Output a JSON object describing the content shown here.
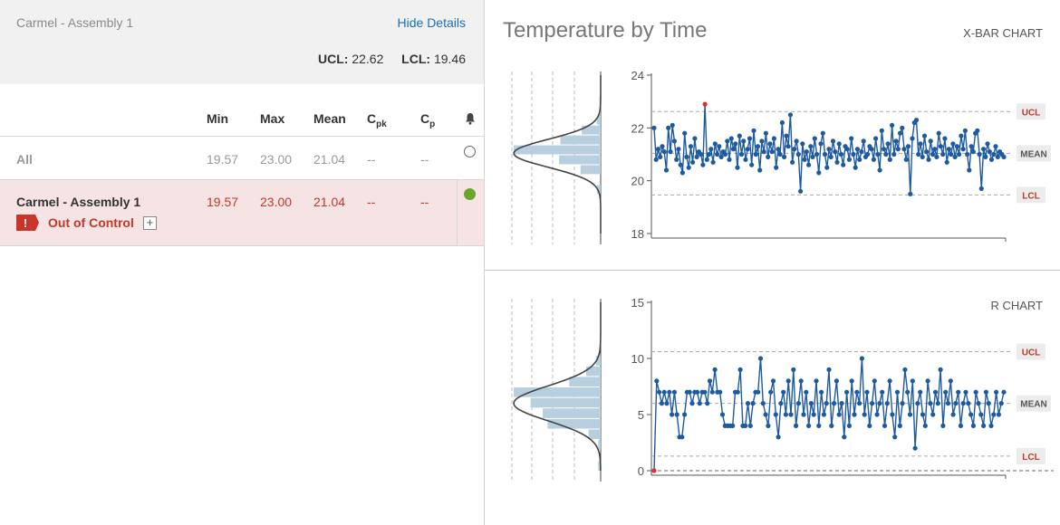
{
  "left": {
    "title": "Carmel - Assembly 1",
    "hide_details": "Hide Details",
    "ucl_label": "UCL:",
    "ucl_value": "22.62",
    "lcl_label": "LCL:",
    "lcl_value": "19.46",
    "columns": {
      "min": "Min",
      "max": "Max",
      "mean": "Mean",
      "cpk_main": "C",
      "cpk_sub": "pk",
      "cp_main": "C",
      "cp_sub": "p"
    },
    "rows": [
      {
        "name": "All",
        "min": "19.57",
        "max": "23.00",
        "mean": "21.04",
        "cpk": "--",
        "cp": "--"
      },
      {
        "name": "Carmel - Assembly 1",
        "min": "19.57",
        "max": "23.00",
        "mean": "21.04",
        "cpk": "--",
        "cp": "--",
        "status": "Out of Control",
        "badge": "!",
        "expand": "+"
      }
    ]
  },
  "right": {
    "title": "Temperature by Time",
    "xbar_label": "X-BAR CHART",
    "r_label": "R CHART",
    "colors": {
      "series": "#1e5aa0",
      "violation": "#e03030",
      "histogram": "#b8cfe0",
      "limit_tag_text": "#c0392b",
      "mean_tag_text": "#555555"
    }
  },
  "chart_data": [
    {
      "type": "line",
      "title": "X-BAR CHART",
      "ylim": [
        18,
        24
      ],
      "yticks": [
        18,
        20,
        22,
        24
      ],
      "limits": {
        "UCL": 22.62,
        "MEAN": 21.04,
        "LCL": 19.46
      },
      "tags": [
        "UCL",
        "MEAN",
        "LCL"
      ],
      "violation_index": 25,
      "values": [
        22.0,
        20.8,
        21.2,
        20.9,
        21.3,
        21.1,
        20.4,
        22.0,
        21.1,
        22.1,
        21.5,
        20.8,
        21.2,
        20.6,
        20.3,
        21.8,
        20.9,
        20.5,
        21.3,
        20.7,
        21.6,
        20.9,
        21.1,
        21.0,
        20.6,
        22.9,
        20.8,
        21.0,
        21.2,
        20.7,
        21.4,
        21.0,
        21.3,
        20.9,
        21.1,
        21.0,
        21.5,
        20.8,
        21.6,
        21.2,
        21.4,
        20.5,
        21.7,
        21.0,
        21.5,
        20.8,
        21.2,
        21.6,
        20.6,
        21.9,
        21.0,
        21.3,
        20.4,
        21.5,
        21.1,
        21.8,
        20.9,
        21.4,
        21.1,
        21.6,
        20.5,
        21.2,
        21.0,
        22.2,
        20.9,
        21.7,
        21.3,
        22.5,
        20.7,
        21.2,
        21.5,
        21.0,
        19.6,
        21.4,
        20.8,
        21.1,
        20.6,
        21.3,
        20.9,
        21.6,
        21.0,
        20.3,
        21.4,
        21.8,
        21.0,
        20.5,
        21.2,
        20.9,
        21.5,
        21.1,
        20.7,
        21.4,
        21.0,
        20.6,
        21.3,
        21.2,
        20.8,
        21.6,
        21.0,
        20.5,
        21.2,
        20.8,
        21.1,
        21.5,
        20.9,
        21.0,
        21.3,
        21.2,
        20.8,
        21.6,
        21.0,
        20.4,
        21.9,
        21.2,
        21.0,
        21.4,
        20.8,
        22.1,
        21.0,
        21.5,
        21.2,
        21.8,
        22.0,
        21.2,
        20.8,
        21.3,
        19.5,
        21.6,
        22.2,
        22.3,
        21.0,
        21.4,
        20.9,
        21.7,
        21.1,
        20.8,
        21.5,
        21.0,
        21.2,
        20.9,
        21.8,
        21.3,
        21.0,
        21.6,
        20.7,
        21.2,
        21.0,
        21.4,
        20.9,
        21.3,
        21.0,
        21.7,
        21.2,
        21.9,
        21.0,
        20.4,
        21.3,
        21.1,
        21.8,
        21.9,
        21.0,
        19.7,
        21.2,
        20.9,
        21.4,
        21.1,
        20.8,
        21.0,
        21.3,
        20.9,
        21.1,
        21.0,
        20.9
      ]
    },
    {
      "type": "line",
      "title": "R CHART",
      "ylim": [
        0,
        15
      ],
      "yticks": [
        0,
        5,
        10,
        15
      ],
      "limits": {
        "UCL": 10.6,
        "MEAN": 6.0,
        "LCL": 1.3
      },
      "tags": [
        "UCL",
        "MEAN",
        "LCL"
      ],
      "violation_index": 0,
      "values": [
        0.0,
        8.0,
        7.0,
        6.0,
        7.0,
        6.0,
        7.0,
        5.0,
        7.0,
        5.0,
        3.0,
        3.0,
        5.0,
        7.0,
        7.0,
        6.0,
        7.0,
        7.0,
        6.0,
        7.0,
        7.0,
        6.0,
        8.0,
        7.0,
        9.0,
        7.0,
        7.0,
        5.0,
        4.0,
        4.0,
        4.0,
        4.0,
        7.0,
        7.0,
        9.0,
        4.0,
        4.0,
        6.0,
        4.0,
        6.0,
        7.0,
        7.0,
        10.0,
        6.0,
        5.0,
        4.0,
        7.0,
        8.0,
        5.0,
        3.0,
        6.0,
        7.0,
        5.0,
        8.0,
        5.0,
        9.0,
        4.0,
        6.0,
        8.0,
        5.0,
        7.0,
        4.0,
        6.0,
        5.0,
        8.0,
        4.0,
        7.0,
        5.0,
        6.0,
        9.0,
        4.0,
        6.0,
        8.0,
        5.0,
        6.0,
        3.0,
        7.0,
        4.0,
        8.0,
        5.0,
        7.0,
        6.0,
        10.0,
        5.0,
        7.0,
        4.0,
        6.0,
        8.0,
        5.0,
        6.0,
        7.0,
        4.0,
        6.0,
        8.0,
        5.0,
        3.0,
        7.0,
        4.0,
        6.0,
        9.0,
        7.0,
        5.0,
        8.0,
        2.0,
        6.0,
        7.0,
        5.0,
        4.0,
        8.0,
        6.0,
        5.0,
        7.0,
        6.0,
        9.0,
        4.0,
        7.0,
        6.0,
        8.0,
        5.0,
        6.0,
        7.0,
        4.0,
        6.0,
        7.0,
        6.0,
        5.0,
        4.0,
        7.0,
        6.0,
        5.0,
        4.0,
        7.0,
        6.0,
        4.0,
        5.0,
        7.0,
        5.0,
        6.0,
        7.0
      ]
    }
  ]
}
